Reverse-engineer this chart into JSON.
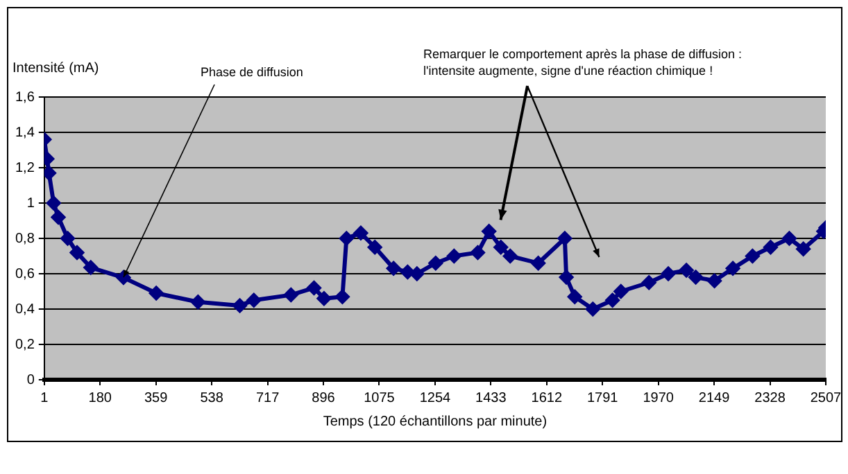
{
  "chart_data": {
    "type": "line",
    "ylabel": "Intensité (mA)",
    "xlabel": "Temps (120 échantillons par minute)",
    "x": [
      1,
      10,
      16,
      31,
      46,
      76,
      106,
      150,
      255,
      360,
      494,
      628,
      673,
      792,
      866,
      898,
      957,
      970,
      1016,
      1061,
      1121,
      1166,
      1196,
      1256,
      1315,
      1391,
      1427,
      1465,
      1495,
      1585,
      1670,
      1675,
      1702,
      1760,
      1823,
      1850,
      1940,
      2002,
      2060,
      2090,
      2150,
      2209,
      2272,
      2330,
      2390,
      2435,
      2500,
      2507
    ],
    "series": [
      {
        "color": "#000080",
        "values": [
          1.36,
          1.25,
          1.17,
          1.0,
          0.92,
          0.8,
          0.72,
          0.635,
          0.578,
          0.49,
          0.44,
          0.42,
          0.45,
          0.48,
          0.52,
          0.46,
          0.47,
          0.8,
          0.83,
          0.75,
          0.63,
          0.61,
          0.6,
          0.66,
          0.7,
          0.72,
          0.84,
          0.75,
          0.7,
          0.66,
          0.8,
          0.58,
          0.47,
          0.4,
          0.45,
          0.5,
          0.55,
          0.6,
          0.62,
          0.58,
          0.56,
          0.63,
          0.7,
          0.75,
          0.8,
          0.74,
          0.84,
          0.86
        ]
      }
    ],
    "xlim": [
      1,
      2507
    ],
    "xticks": [
      1,
      180,
      359,
      538,
      717,
      896,
      1075,
      1254,
      1433,
      1612,
      1791,
      1970,
      2149,
      2328,
      2507
    ],
    "ylim": [
      0,
      1.6
    ],
    "yticks": [
      0,
      {
        "value": 0.2,
        "label": "0,2"
      },
      {
        "value": 0.4,
        "label": "0,4"
      },
      {
        "value": 0.6,
        "label": "0,6"
      },
      {
        "value": 0.8,
        "label": "0,8"
      },
      1,
      {
        "value": 1.2,
        "label": "1,2"
      },
      {
        "value": 1.4,
        "label": "1,4"
      },
      {
        "value": 1.6,
        "label": "1,6"
      }
    ],
    "grid": "y",
    "legend": false,
    "marker": "diamond",
    "line_style": "solid",
    "annotations": [
      {
        "text": "Phase de diffusion",
        "x": 255,
        "y": 0.58
      },
      "Remarquer le comportement après la phase de diffusion : l'intensite augmente, signe d'une réaction chimique !"
    ]
  }
}
